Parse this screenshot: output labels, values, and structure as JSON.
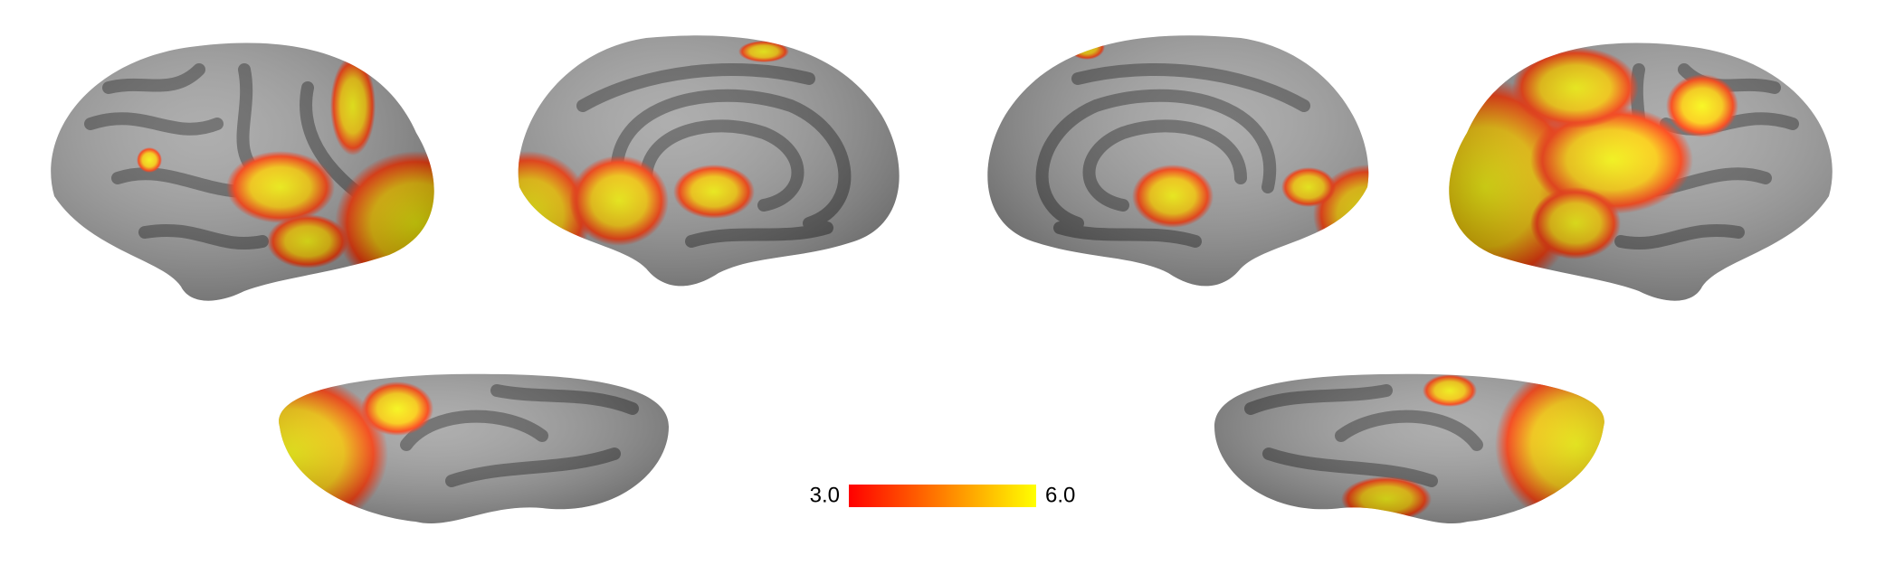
{
  "colorbar": {
    "ticks": [
      {
        "value": 3,
        "label": "3.0"
      },
      {
        "value": 6,
        "label": "6.0"
      }
    ],
    "colors": [
      "#ff0000",
      "#ffff00"
    ]
  }
}
